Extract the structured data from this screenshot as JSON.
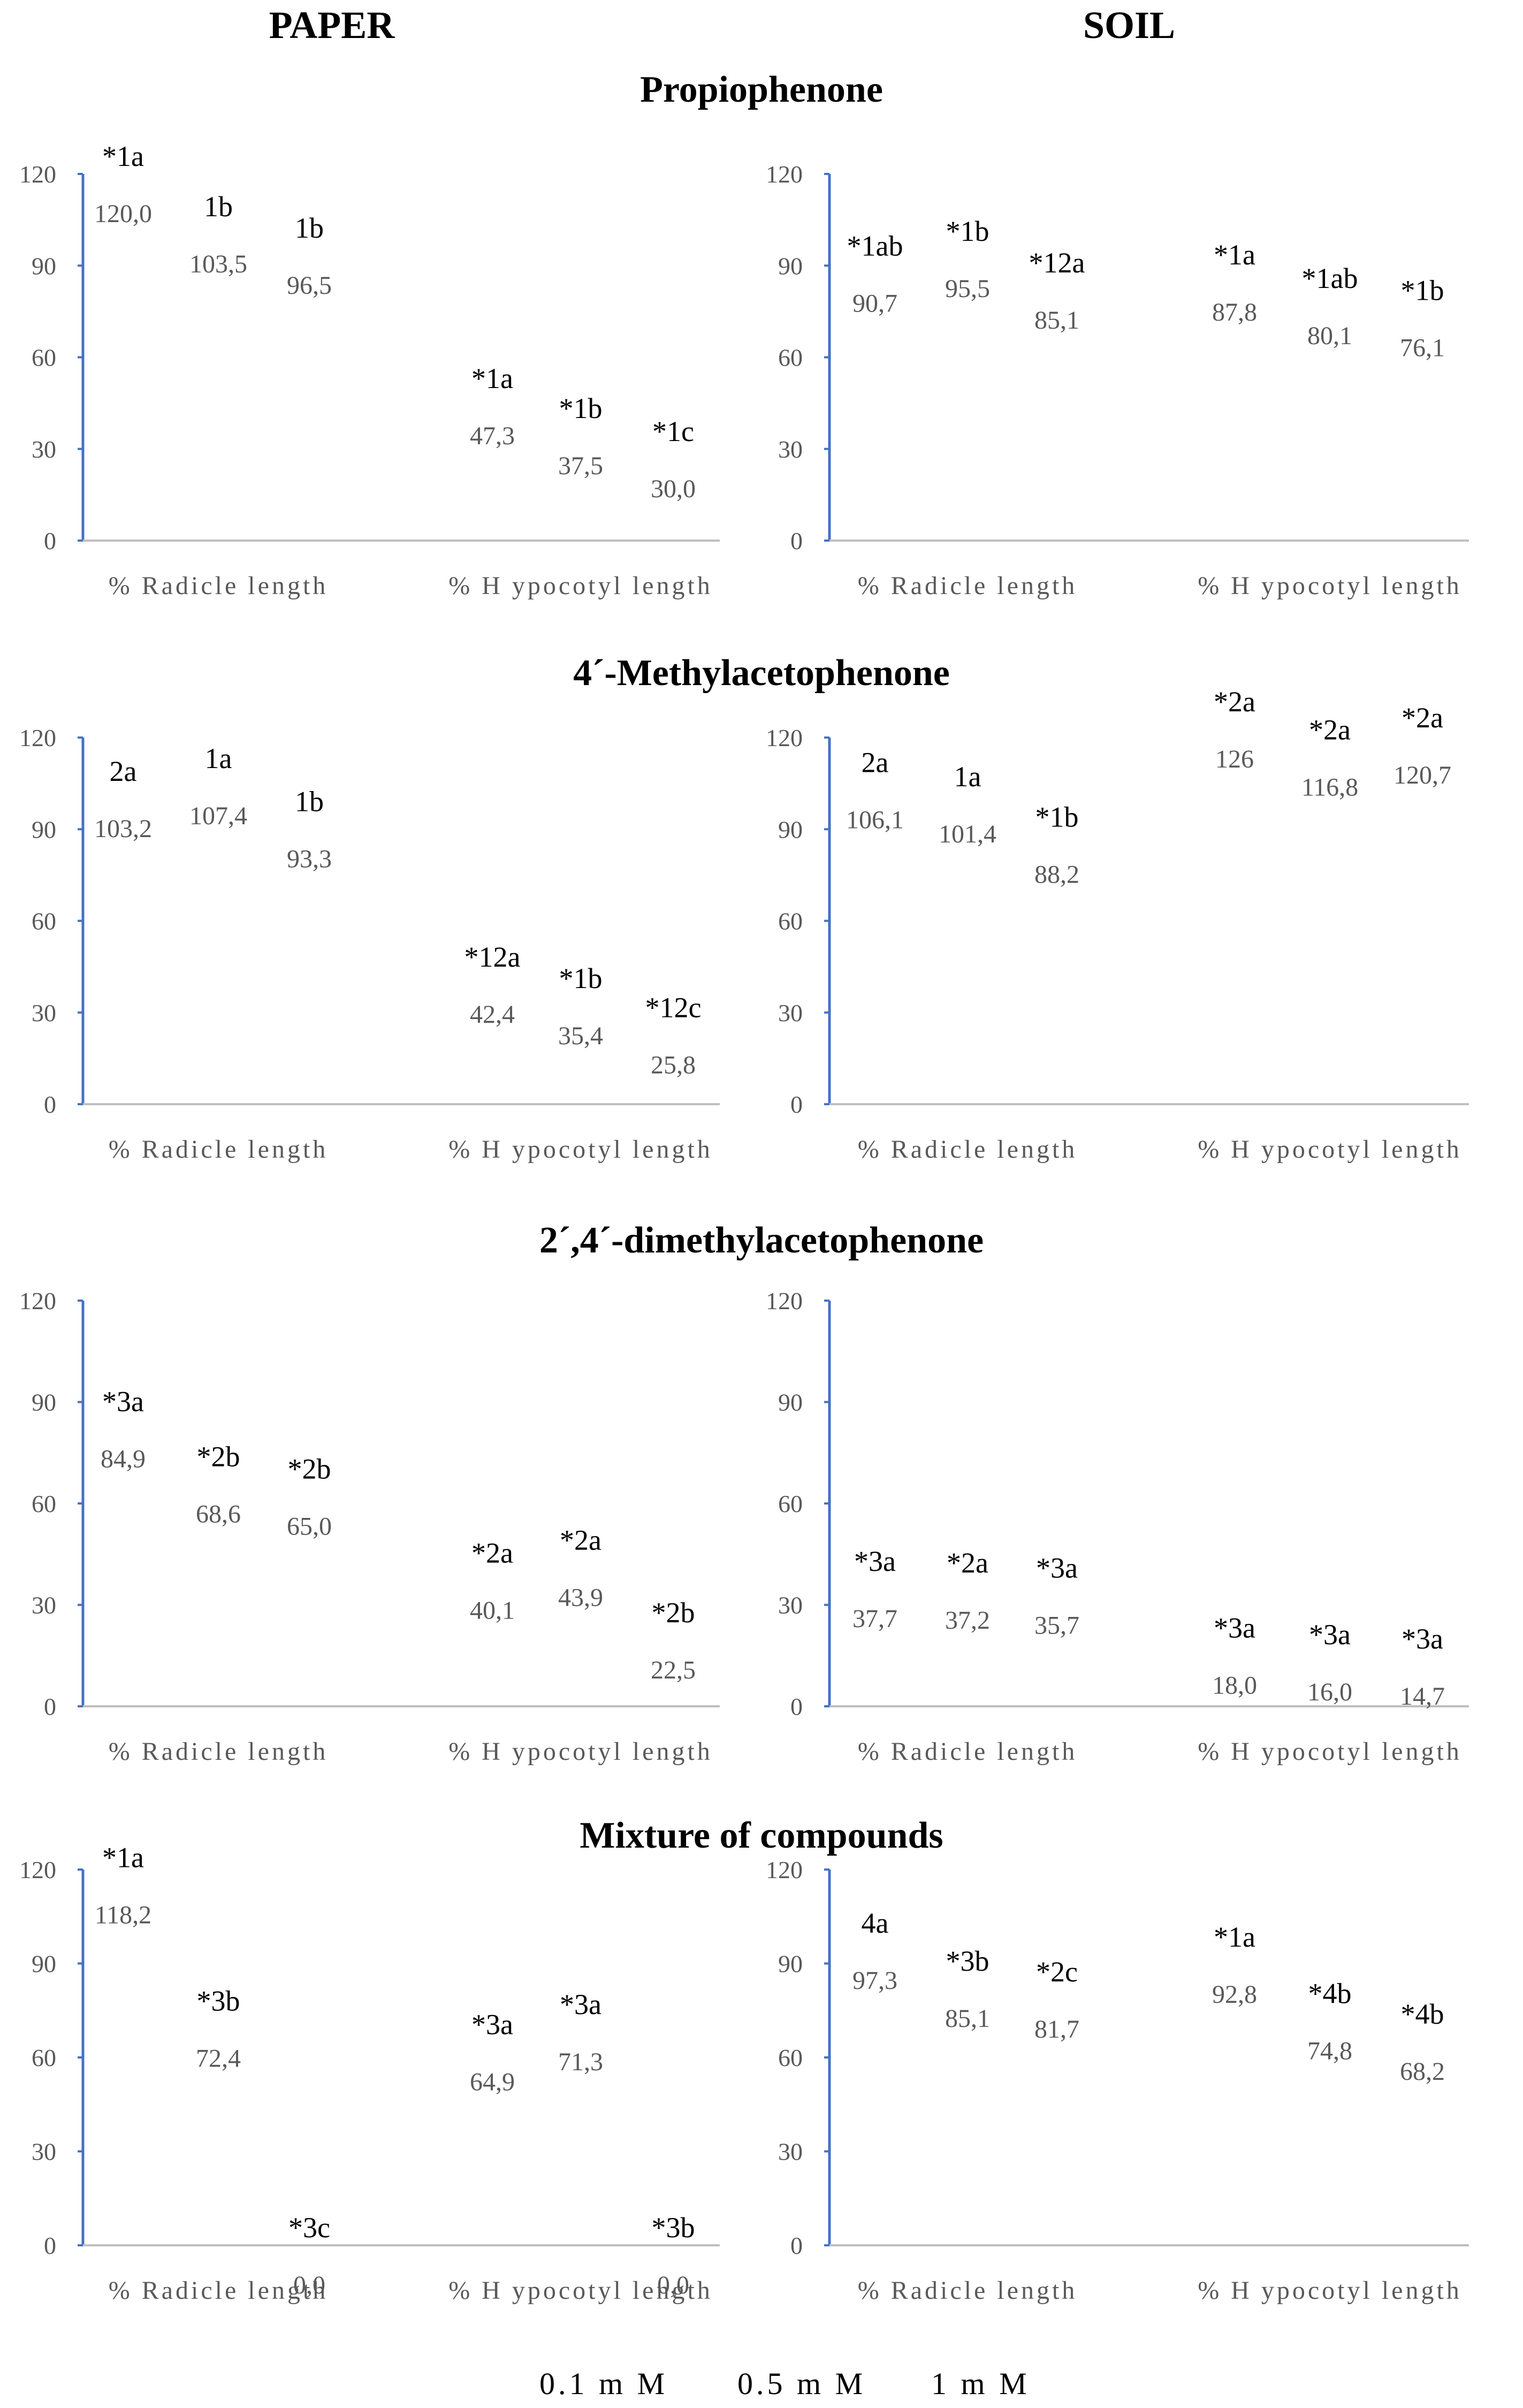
{
  "headers": {
    "left": "PAPER",
    "right": "SOIL"
  },
  "section_titles": [
    "Propiophenone",
    "4´-Methylacetophenone",
    "2´,4´-dimethylacetophenone",
    "Mixture of compounds"
  ],
  "legend": [
    "0.1 m M",
    "0.5 m M",
    "1 m M"
  ],
  "colors": {
    "axis": "#4472c4",
    "value": "#595959",
    "label": "#000000"
  },
  "chart_data": [
    {
      "type": "bar",
      "panel": "paper",
      "compound": "Propiophenone",
      "categories": [
        "% Radicle length",
        "% H ypocotyl length"
      ],
      "series": [
        {
          "name": "0.1 m M",
          "values": [
            120.0,
            47.3
          ],
          "value_labels": [
            "120,0",
            "47,3"
          ],
          "sig_labels": [
            "*1a",
            "*1a"
          ]
        },
        {
          "name": "0.5 m M",
          "values": [
            103.5,
            37.5
          ],
          "value_labels": [
            "103,5",
            "37,5"
          ],
          "sig_labels": [
            "1b",
            "*1b"
          ]
        },
        {
          "name": "1 m M",
          "values": [
            96.5,
            30.0
          ],
          "value_labels": [
            "96,5",
            "30,0"
          ],
          "sig_labels": [
            "1b",
            "*1c"
          ]
        }
      ],
      "ylim": [
        0,
        120
      ],
      "yticks": [
        "0",
        "30",
        "60",
        "90",
        "120"
      ]
    },
    {
      "type": "bar",
      "panel": "soil",
      "compound": "Propiophenone",
      "categories": [
        "% Radicle length",
        "% H ypocotyl length"
      ],
      "series": [
        {
          "name": "0.1 m M",
          "values": [
            90.7,
            87.8
          ],
          "value_labels": [
            "90,7",
            "87,8"
          ],
          "sig_labels": [
            "*1ab",
            "*1a"
          ]
        },
        {
          "name": "0.5 m M",
          "values": [
            95.5,
            80.1
          ],
          "value_labels": [
            "95,5",
            "80,1"
          ],
          "sig_labels": [
            "*1b",
            "*1ab"
          ]
        },
        {
          "name": "1 m M",
          "values": [
            85.1,
            76.1
          ],
          "value_labels": [
            "85,1",
            "76,1"
          ],
          "sig_labels": [
            "*12a",
            "*1b"
          ]
        }
      ],
      "ylim": [
        0,
        120
      ],
      "yticks": [
        "0",
        "30",
        "60",
        "90",
        "120"
      ]
    },
    {
      "type": "bar",
      "panel": "paper",
      "compound": "4´-Methylacetophenone",
      "categories": [
        "% Radicle length",
        "% H ypocotyl length"
      ],
      "series": [
        {
          "name": "0.1 m M",
          "values": [
            103.2,
            42.4
          ],
          "value_labels": [
            "103,2",
            "42,4"
          ],
          "sig_labels": [
            "2a",
            "*12a"
          ]
        },
        {
          "name": "0.5 m M",
          "values": [
            107.4,
            35.4
          ],
          "value_labels": [
            "107,4",
            "35,4"
          ],
          "sig_labels": [
            "1a",
            "*1b"
          ]
        },
        {
          "name": "1 m M",
          "values": [
            93.3,
            25.8
          ],
          "value_labels": [
            "93,3",
            "25,8"
          ],
          "sig_labels": [
            "1b",
            "*12c"
          ]
        }
      ],
      "ylim": [
        0,
        120
      ],
      "yticks": [
        "0",
        "30",
        "60",
        "90",
        "120"
      ]
    },
    {
      "type": "bar",
      "panel": "soil",
      "compound": "4´-Methylacetophenone",
      "categories": [
        "% Radicle length",
        "% H ypocotyl length"
      ],
      "series": [
        {
          "name": "0.1 m M",
          "values": [
            106.1,
            126
          ],
          "value_labels": [
            "106,1",
            "126"
          ],
          "sig_labels": [
            "2a",
            "*2a"
          ]
        },
        {
          "name": "0.5 m M",
          "values": [
            101.4,
            116.8
          ],
          "value_labels": [
            "101,4",
            "116,8"
          ],
          "sig_labels": [
            "1a",
            "*2a"
          ]
        },
        {
          "name": "1 m M",
          "values": [
            88.2,
            120.7
          ],
          "value_labels": [
            "88,2",
            "120,7"
          ],
          "sig_labels": [
            "*1b",
            "*2a"
          ]
        }
      ],
      "ylim": [
        0,
        120
      ],
      "yticks": [
        "0",
        "30",
        "60",
        "90",
        "120"
      ]
    },
    {
      "type": "bar",
      "panel": "paper",
      "compound": "2´,4´-dimethylacetophenone",
      "categories": [
        "% Radicle length",
        "% H ypocotyl length"
      ],
      "series": [
        {
          "name": "0.1 m M",
          "values": [
            84.9,
            40.1
          ],
          "value_labels": [
            "84,9",
            "40,1"
          ],
          "sig_labels": [
            "*3a",
            "*2a"
          ]
        },
        {
          "name": "0.5 m M",
          "values": [
            68.6,
            43.9
          ],
          "value_labels": [
            "68,6",
            "43,9"
          ],
          "sig_labels": [
            "*2b",
            "*2a"
          ]
        },
        {
          "name": "1 m M",
          "values": [
            65.0,
            22.5
          ],
          "value_labels": [
            "65,0",
            "22,5"
          ],
          "sig_labels": [
            "*2b",
            "*2b"
          ]
        }
      ],
      "ylim": [
        0,
        120
      ],
      "yticks": [
        "0",
        "30",
        "60",
        "90",
        "120"
      ]
    },
    {
      "type": "bar",
      "panel": "soil",
      "compound": "2´,4´-dimethylacetophenone",
      "categories": [
        "% Radicle length",
        "% H ypocotyl length"
      ],
      "series": [
        {
          "name": "0.1 m M",
          "values": [
            37.7,
            18.0
          ],
          "value_labels": [
            "37,7",
            "18,0"
          ],
          "sig_labels": [
            "*3a",
            "*3a"
          ]
        },
        {
          "name": "0.5 m M",
          "values": [
            37.2,
            16.0
          ],
          "value_labels": [
            "37,2",
            "16,0"
          ],
          "sig_labels": [
            "*2a",
            "*3a"
          ]
        },
        {
          "name": "1 m M",
          "values": [
            35.7,
            14.7
          ],
          "value_labels": [
            "35,7",
            "14,7"
          ],
          "sig_labels": [
            "*3a",
            "*3a"
          ]
        }
      ],
      "ylim": [
        0,
        120
      ],
      "yticks": [
        "0",
        "30",
        "60",
        "90",
        "120"
      ]
    },
    {
      "type": "bar",
      "panel": "paper",
      "compound": "Mixture of compounds",
      "categories": [
        "% Radicle length",
        "% H ypocotyl length"
      ],
      "series": [
        {
          "name": "0.1 m M",
          "values": [
            118.2,
            64.9
          ],
          "value_labels": [
            "118,2",
            "64,9"
          ],
          "sig_labels": [
            "*1a",
            "*3a"
          ]
        },
        {
          "name": "0.5 m M",
          "values": [
            72.4,
            71.3
          ],
          "value_labels": [
            "72,4",
            "71,3"
          ],
          "sig_labels": [
            "*3b",
            "*3a"
          ]
        },
        {
          "name": "1 m M",
          "values": [
            0.0,
            0.0
          ],
          "value_labels": [
            "0,0",
            "0,0"
          ],
          "sig_labels": [
            "*3c",
            "*3b"
          ]
        }
      ],
      "ylim": [
        0,
        120
      ],
      "yticks": [
        "0",
        "30",
        "60",
        "90",
        "120"
      ]
    },
    {
      "type": "bar",
      "panel": "soil",
      "compound": "Mixture of compounds",
      "categories": [
        "% Radicle length",
        "% H ypocotyl length"
      ],
      "series": [
        {
          "name": "0.1 m M",
          "values": [
            97.3,
            92.8
          ],
          "value_labels": [
            "97,3",
            "92,8"
          ],
          "sig_labels": [
            "4a",
            "*1a"
          ]
        },
        {
          "name": "0.5 m M",
          "values": [
            85.1,
            74.8
          ],
          "value_labels": [
            "85,1",
            "74,8"
          ],
          "sig_labels": [
            "*3b",
            "*4b"
          ]
        },
        {
          "name": "1 m M",
          "values": [
            81.7,
            68.2
          ],
          "value_labels": [
            "81,7",
            "68,2"
          ],
          "sig_labels": [
            "*2c",
            "*4b"
          ]
        }
      ],
      "ylim": [
        0,
        120
      ],
      "yticks": [
        "0",
        "30",
        "60",
        "90",
        "120"
      ]
    }
  ]
}
